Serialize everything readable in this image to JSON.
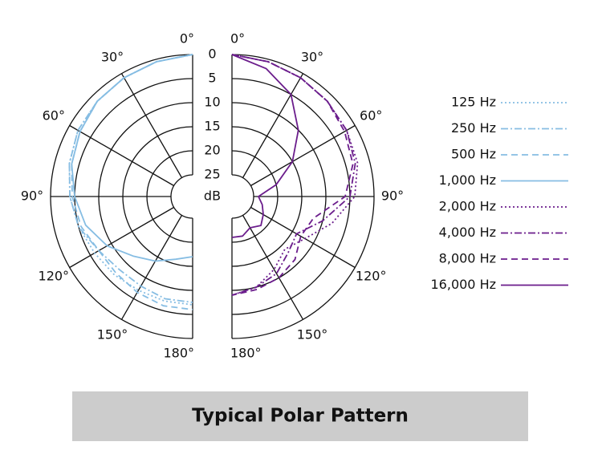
{
  "chart_data": {
    "type": "polar",
    "title": "Typical Polar Pattern",
    "r_label": "dB",
    "angles": [
      0,
      15,
      30,
      45,
      60,
      75,
      90,
      105,
      120,
      135,
      150,
      165,
      180
    ],
    "thetaticks": [
      {
        "value": 0,
        "label": "0°"
      },
      {
        "value": 30,
        "label": "30°"
      },
      {
        "value": 60,
        "label": "60°"
      },
      {
        "value": 90,
        "label": "90°"
      },
      {
        "value": 120,
        "label": "120°"
      },
      {
        "value": 150,
        "label": "150°"
      },
      {
        "value": 180,
        "label": "180°"
      }
    ],
    "rlim": [
      0,
      25
    ],
    "rticks": [
      0,
      5,
      10,
      15,
      20,
      25
    ],
    "series": [
      {
        "name": "125 Hz",
        "color": "#86bde3",
        "style": "dotted",
        "side": "left",
        "values": [
          0,
          0.5,
          1,
          1.5,
          2,
          3,
          4,
          5,
          6,
          6.5,
          7,
          7,
          7
        ]
      },
      {
        "name": "250 Hz",
        "color": "#86bde3",
        "style": "dashdot",
        "side": "left",
        "values": [
          0,
          0.5,
          1,
          1.5,
          2,
          3,
          4,
          5,
          7,
          8,
          8,
          7.5,
          7.5
        ]
      },
      {
        "name": "500 Hz",
        "color": "#86bde3",
        "style": "dashed",
        "side": "left",
        "values": [
          0,
          0.5,
          1,
          1.5,
          2.5,
          3.5,
          4.5,
          5.5,
          7,
          7,
          6.5,
          6,
          6
        ]
      },
      {
        "name": "1,000 Hz",
        "color": "#86bde3",
        "style": "solid",
        "side": "left",
        "values": [
          0,
          0.5,
          1,
          1.5,
          2.5,
          3.5,
          5,
          6.5,
          9,
          12,
          14,
          16,
          17
        ]
      },
      {
        "name": "2,000 Hz",
        "color": "#6b1d8c",
        "style": "dotted",
        "side": "right",
        "values": [
          0,
          0.5,
          1,
          1.5,
          2,
          2.5,
          4,
          8,
          12,
          14,
          12,
          10,
          9
        ]
      },
      {
        "name": "4,000 Hz",
        "color": "#6b1d8c",
        "style": "dashdot",
        "side": "right",
        "values": [
          0,
          0.5,
          1,
          1.5,
          2,
          3,
          5,
          10,
          14,
          13,
          11,
          10,
          9
        ]
      },
      {
        "name": "8,000 Hz",
        "color": "#6b1d8c",
        "style": "dashed",
        "side": "right",
        "values": [
          0,
          0.5,
          1,
          1.5,
          2.5,
          3.5,
          6,
          12,
          13,
          11,
          10,
          9.5,
          9
        ]
      },
      {
        "name": "16,000 Hz",
        "color": "#6b1d8c",
        "style": "solid",
        "side": "right",
        "values": [
          0,
          2,
          5,
          10,
          15,
          20,
          24,
          23,
          22,
          21,
          22,
          21,
          21
        ]
      }
    ]
  }
}
